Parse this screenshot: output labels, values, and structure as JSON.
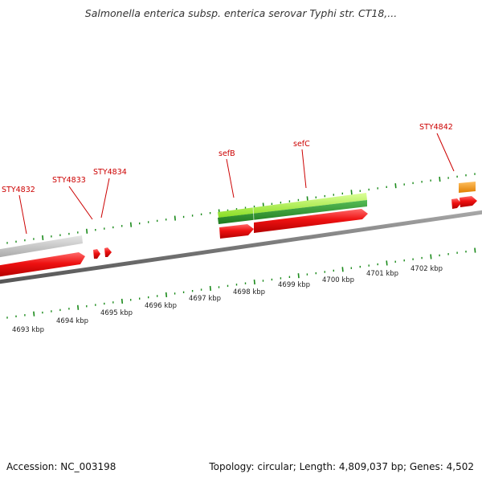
{
  "title": "Salmonella enterica subsp. enterica serovar Typhi str. CT18,...",
  "accession": "Accession: NC_003198",
  "summary": "Topology: circular; Length: 4,809,037 bp; Genes: 4,502",
  "scale_labels": [
    "4693 kbp",
    "4694 kbp",
    "4695 kbp",
    "4696 kbp",
    "4697 kbp",
    "4698 kbp",
    "4699 kbp",
    "4700 kbp",
    "4701 kbp",
    "4702 kbp"
  ],
  "gene_labels": [
    "STY4832",
    "STY4833",
    "STY4834",
    "sefB",
    "sefC",
    "STY4842"
  ],
  "colors": {
    "background": "#ffffff",
    "backbone": "#777777",
    "gene": "#ee1111",
    "gene_label": "#cc0000",
    "tick": "#1a8a1a",
    "pseudo": "#c8c8c8",
    "feature_light": "#99ee33",
    "feature_dark": "#2e9a2e",
    "feature_other": "#f59a14"
  }
}
